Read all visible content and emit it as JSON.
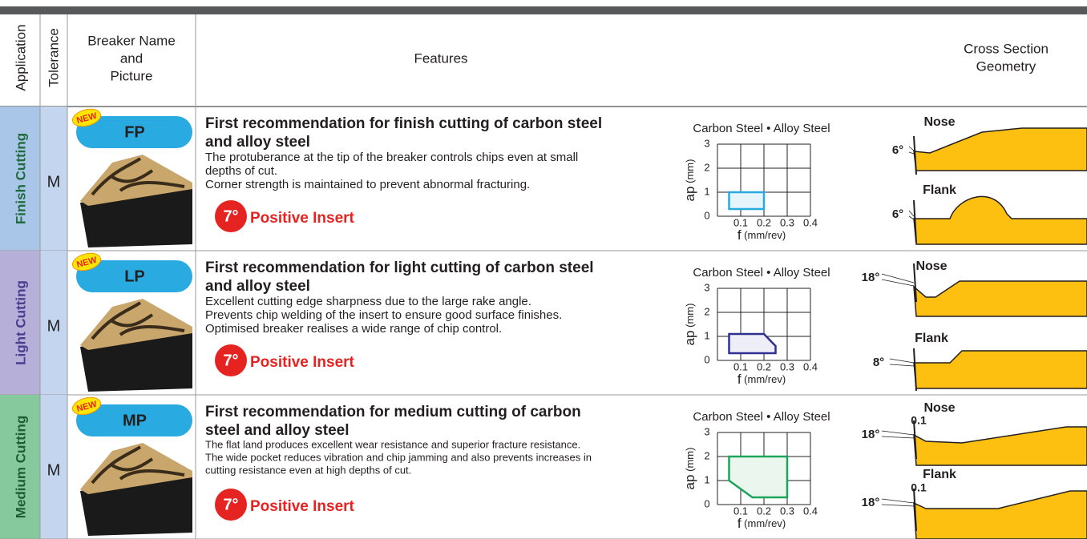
{
  "header": {
    "application": "Application",
    "tolerance": "Tolerance",
    "breaker": [
      "Breaker Name",
      "and",
      "Picture"
    ],
    "features": "Features",
    "cross_section": [
      "Cross Section",
      "Geometry"
    ]
  },
  "rows": [
    {
      "application": "Finish Cutting",
      "tolerance": "M",
      "badge": "NEW",
      "breaker": "FP",
      "title": [
        "First recommendation for finish cutting of carbon steel",
        "and alloy steel"
      ],
      "description": [
        "The protuberance at the tip of the breaker controls chips even at small",
        "depths of cut.",
        "Corner strength is maintained to prevent abnormal fracturing."
      ],
      "angle": "7°",
      "insert": "Positive Insert",
      "chart": {
        "label": "Carbon Steel • Alloy Steel",
        "y_label": "ap",
        "y_unit": "(mm)",
        "x_label": "f",
        "x_unit": "(mm/rev)",
        "xlim": [
          0,
          0.4
        ],
        "ylim": [
          0,
          3
        ],
        "xticks": [
          0.1,
          0.2,
          0.3,
          0.4
        ],
        "yticks": [
          0,
          1,
          2,
          3
        ],
        "region": {
          "f": [
            0.05,
            0.2,
            0.2,
            0.05
          ],
          "ap": [
            0.3,
            0.3,
            1,
            1
          ]
        },
        "color": "#29abe2",
        "fill": "#e6f5fc"
      },
      "geometry": {
        "nose": "Nose",
        "nose_angle": "6°",
        "flank": "Flank",
        "flank_angle": "6°"
      }
    },
    {
      "application": "Light Cutting",
      "tolerance": "M",
      "badge": "NEW",
      "breaker": "LP",
      "title": [
        "First recommendation for light cutting of carbon steel",
        "and alloy steel"
      ],
      "description": [
        "Excellent cutting edge sharpness due to the large rake angle.",
        "Prevents chip welding of the insert to ensure good surface finishes.",
        "Optimised breaker realises a wide range of chip control."
      ],
      "angle": "7°",
      "insert": "Positive Insert",
      "chart": {
        "label": "Carbon Steel • Alloy Steel",
        "y_label": "ap",
        "y_unit": "(mm)",
        "x_label": "f",
        "x_unit": "(mm/rev)",
        "xlim": [
          0,
          0.4
        ],
        "ylim": [
          0,
          3
        ],
        "xticks": [
          0.1,
          0.2,
          0.3,
          0.4
        ],
        "yticks": [
          0,
          1,
          2,
          3
        ],
        "region": {
          "f": [
            0.05,
            0.25,
            0.25,
            0.2,
            0.05
          ],
          "ap": [
            0.3,
            0.3,
            0.6,
            1.1,
            1.1
          ]
        },
        "color": "#2e3192",
        "fill": "#eeeef8"
      },
      "geometry": {
        "nose": "Nose",
        "nose_angle": "18°",
        "flank": "Flank",
        "flank_angle": "8°"
      }
    },
    {
      "application": "Medium Cutting",
      "tolerance": "M",
      "badge": "NEW",
      "breaker": "MP",
      "title": [
        "First recommendation for medium cutting of carbon",
        "steel and alloy steel"
      ],
      "description": [
        "The flat land produces excellent wear resistance and superior fracture resistance.",
        "The wide pocket reduces vibration and chip jamming and also prevents increases in",
        "cutting resistance even at high depths of cut."
      ],
      "angle": "7°",
      "insert": "Positive Insert",
      "chart": {
        "label": "Carbon Steel • Alloy Steel",
        "y_label": "ap",
        "y_unit": "(mm)",
        "x_label": "f",
        "x_unit": "(mm/rev)",
        "xlim": [
          0,
          0.4
        ],
        "ylim": [
          0,
          3
        ],
        "xticks": [
          0.1,
          0.2,
          0.3,
          0.4
        ],
        "yticks": [
          0,
          1,
          2,
          3
        ],
        "region": {
          "f": [
            0.05,
            0.3,
            0.3,
            0.15,
            0.05
          ],
          "ap": [
            2,
            2,
            0.3,
            0.3,
            1
          ]
        },
        "color": "#1aa55a",
        "fill": "#eaf6ee"
      },
      "geometry": {
        "nose": "Nose",
        "nose_angle": "18°",
        "nose_land": "0.1",
        "flank": "Flank",
        "flank_angle": "18°",
        "flank_land": "0.1"
      }
    }
  ]
}
